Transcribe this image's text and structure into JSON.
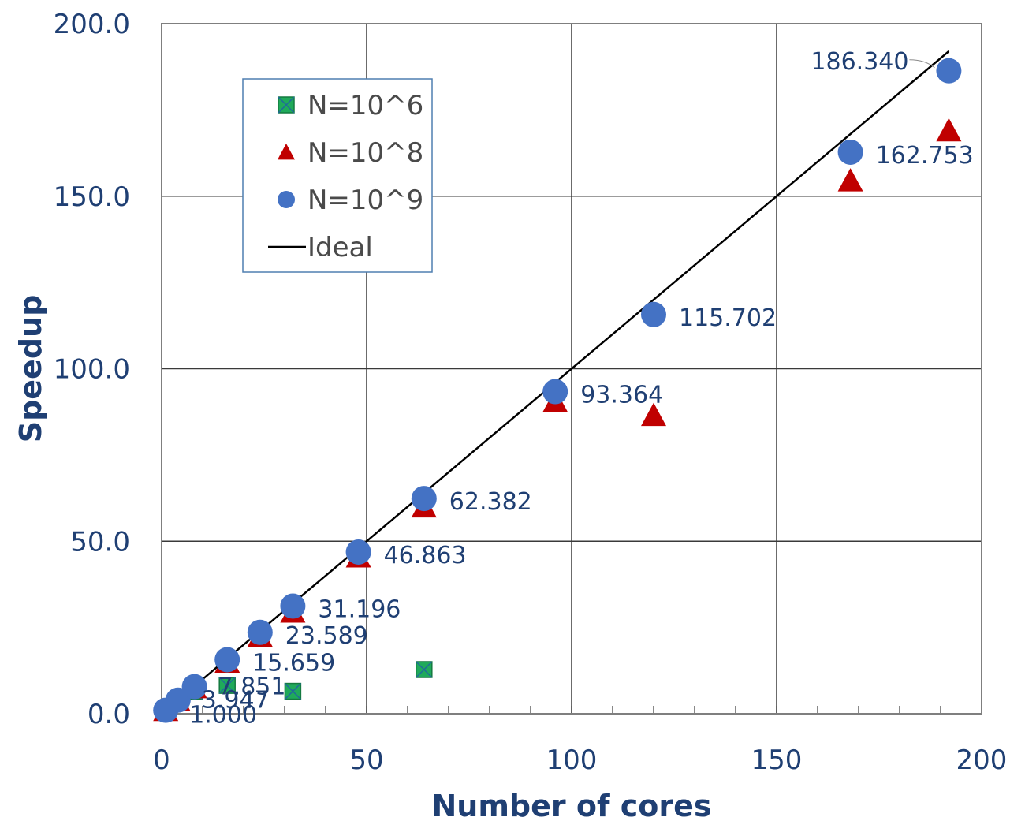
{
  "chart_data": {
    "type": "scatter",
    "title": "",
    "xlabel": "Number of cores",
    "ylabel": "Speedup",
    "xlim": [
      0,
      200
    ],
    "ylim": [
      0,
      200
    ],
    "xticks": [
      "0",
      "50",
      "100",
      "150",
      "200"
    ],
    "yticks": [
      "0.0",
      "50.0",
      "100.0",
      "150.0",
      "200.0"
    ],
    "grid": true,
    "legend_position": "top-left",
    "series": [
      {
        "name": "N=10^6",
        "marker": "square-x",
        "color": "#1faa5a",
        "points": [
          [
            1,
            1.0
          ],
          [
            4,
            3.9
          ],
          [
            8,
            6.5
          ],
          [
            16,
            8.2
          ],
          [
            32,
            6.5
          ],
          [
            64,
            12.8
          ]
        ]
      },
      {
        "name": "N=10^8",
        "marker": "triangle",
        "color": "#c00000",
        "points": [
          [
            1,
            1.0
          ],
          [
            4,
            3.8
          ],
          [
            8,
            7.6
          ],
          [
            16,
            15.0
          ],
          [
            24,
            22.5
          ],
          [
            32,
            29.5
          ],
          [
            48,
            45.5
          ],
          [
            64,
            60.0
          ],
          [
            96,
            90.5
          ],
          [
            120,
            86.5
          ],
          [
            168,
            154.5
          ],
          [
            192,
            169.0
          ]
        ]
      },
      {
        "name": "N=10^9",
        "marker": "circle",
        "color": "#4472c4",
        "points": [
          [
            1,
            1.0
          ],
          [
            4,
            3.947
          ],
          [
            8,
            7.851
          ],
          [
            16,
            15.659
          ],
          [
            24,
            23.589
          ],
          [
            32,
            31.196
          ],
          [
            48,
            46.863
          ],
          [
            64,
            62.382
          ],
          [
            96,
            93.364
          ],
          [
            120,
            115.702
          ],
          [
            168,
            162.753
          ],
          [
            192,
            186.34
          ]
        ]
      },
      {
        "name": "Ideal",
        "marker": "line",
        "color": "#000000",
        "points": [
          [
            0,
            0
          ],
          [
            192,
            192
          ]
        ]
      }
    ],
    "data_labels": [
      {
        "text": "1.000",
        "x": 1,
        "y": 1.0
      },
      {
        "text": "3.947",
        "x": 4,
        "y": 3.947
      },
      {
        "text": "7.851",
        "x": 8,
        "y": 7.851
      },
      {
        "text": "15.659",
        "x": 16,
        "y": 15.659
      },
      {
        "text": "23.589",
        "x": 24,
        "y": 23.589
      },
      {
        "text": "31.196",
        "x": 32,
        "y": 31.196
      },
      {
        "text": "46.863",
        "x": 48,
        "y": 46.863
      },
      {
        "text": "62.382",
        "x": 64,
        "y": 62.382
      },
      {
        "text": "93.364",
        "x": 96,
        "y": 93.364
      },
      {
        "text": "115.702",
        "x": 120,
        "y": 115.702
      },
      {
        "text": "162.753",
        "x": 168,
        "y": 162.753
      },
      {
        "text": "186.340",
        "x": 192,
        "y": 186.34
      }
    ]
  }
}
